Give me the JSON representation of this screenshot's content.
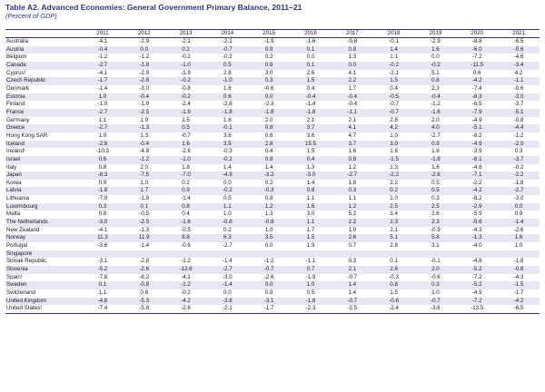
{
  "title": "Table A2. Advanced Economies: General Government Primary Balance, 2011–21",
  "subtitle": "(Percent of GDP)",
  "years": [
    "2011",
    "2012",
    "2013",
    "2014",
    "2015",
    "2016",
    "2017",
    "2018",
    "2019",
    "2020",
    "2021"
  ],
  "rows": [
    {
      "country": "Australia",
      "values": [
        "-4.1",
        "-2.9",
        "-2.1",
        "-2.1",
        "-1.9",
        "-1.6",
        "-0.8",
        "-0.1",
        "-2.9",
        "-8.8",
        "-6.5"
      ]
    },
    {
      "country": "Austria",
      "values": [
        "-0.4",
        "0.0",
        "0.2",
        "-0.7",
        "0.9",
        "0.1",
        "0.8",
        "1.4",
        "1.6",
        "-6.0",
        "-0.6"
      ]
    },
    {
      "country": "Belgium",
      "values": [
        "-1.2",
        "-1.2",
        "-0.2",
        "-0.2",
        "0.2",
        "0.0",
        "1.3",
        "1.1",
        "0.0",
        "-7.2",
        "-4.6"
      ]
    },
    {
      "country": "Canada",
      "values": [
        "-2.7",
        "-1.8",
        "-1.0",
        "0.5",
        "0.6",
        "0.1",
        "0.0",
        "-0.2",
        "-0.2",
        "-11.5",
        "-3.4"
      ]
    },
    {
      "country": "Cyprus¹",
      "values": [
        "-4.1",
        "-2.9",
        "-1.9",
        "2.8",
        "3.0",
        "2.6",
        "4.1",
        "-2.1",
        "5.1",
        "0.6",
        "4.2"
      ]
    },
    {
      "country": "Czech Republic",
      "values": [
        "-1.7",
        "-2.8",
        "-0.2",
        "-1.0",
        "0.3",
        "1.5",
        "2.2",
        "1.5",
        "0.8",
        "-4.2",
        "-1.1"
      ]
    },
    {
      "country": "Denmark",
      "values": [
        "-1.4",
        "-3.0",
        "-0.8",
        "1.6",
        "-0.6",
        "0.4",
        "1.7",
        "0.4",
        "2.3",
        "-7.4",
        "-0.6"
      ]
    },
    {
      "country": "Estonia",
      "values": [
        "1.0",
        "-0.4",
        "-0.2",
        "0.6",
        "0.0",
        "-0.4",
        "-0.4",
        "-0.5",
        "-0.4",
        "-8.3",
        "-3.0"
      ]
    },
    {
      "country": "Finland",
      "values": [
        "-1.0",
        "-1.9",
        "-2.4",
        "-2.8",
        "-2.3",
        "-1.4",
        "-0.4",
        "-0.7",
        "-1.2",
        "-6.5",
        "-3.7"
      ]
    },
    {
      "country": "France",
      "values": [
        "-2.7",
        "-2.5",
        "-1.9",
        "-1.8",
        "-1.8",
        "-1.8",
        "-1.1",
        "-0.7",
        "-1.6",
        "-7.9",
        "-5.1"
      ]
    },
    {
      "country": "Germany",
      "values": [
        "1.1",
        "1.9",
        "1.5",
        "1.8",
        "2.0",
        "2.1",
        "2.1",
        "2.6",
        "2.0",
        "-4.9",
        "-0.8"
      ]
    },
    {
      "country": "Greece",
      "values": [
        "-2.7",
        "-1.3",
        "0.5",
        "-0.1",
        "0.8",
        "3.7",
        "4.1",
        "4.2",
        "4.0",
        "-5.1",
        "-4.4"
      ]
    },
    {
      "country": "Hong Kong SAR",
      "values": [
        "1.9",
        "1.3",
        "-0.7",
        "3.6",
        "0.6",
        "3.6",
        "4.7",
        "1.0",
        "-2.7",
        "-8.2",
        "-1.2"
      ]
    },
    {
      "country": "Iceland",
      "values": [
        "-2.8",
        "-0.4",
        "1.6",
        "3.5",
        "2.8",
        "15.5",
        "3.7",
        "3.0",
        "0.9",
        "-4.9",
        "-2.0"
      ]
    },
    {
      "country": "Ireland¹",
      "values": [
        "-10.3",
        "-4.8",
        "-2.6",
        "-0.3",
        "0.4",
        "1.5",
        "1.6",
        "1.6",
        "1.6",
        "-3.9",
        "0.3"
      ]
    },
    {
      "country": "Israel",
      "values": [
        "0.6",
        "-1.2",
        "-1.0",
        "-0.2",
        "0.8",
        "0.4",
        "0.8",
        "-1.5",
        "-1.8",
        "-8.1",
        "-3.7"
      ]
    },
    {
      "country": "Italy",
      "values": [
        "0.8",
        "2.0",
        "1.8",
        "1.4",
        "1.4",
        "1.3",
        "1.2",
        "1.3",
        "1.6",
        "-4.8",
        "-0.2"
      ]
    },
    {
      "country": "Japan",
      "values": [
        "-8.3",
        "-7.5",
        "-7.0",
        "-4.9",
        "-3.2",
        "-3.0",
        "-2.7",
        "-2.2",
        "-2.6",
        "-7.1",
        "-2.2"
      ]
    },
    {
      "country": "Korea",
      "values": [
        "0.9",
        "1.0",
        "0.2",
        "0.0",
        "0.2",
        "1.4",
        "1.8",
        "2.2",
        "0.5",
        "-2.2",
        "-1.8"
      ]
    },
    {
      "country": "Latvia",
      "values": [
        "-1.8",
        "1.7",
        "0.9",
        "-0.2",
        "-0.3",
        "0.8",
        "0.3",
        "0.2",
        "0.5",
        "-4.2",
        "-2.7"
      ]
    },
    {
      "country": "Lithuania",
      "values": [
        "-7.9",
        "-1.8",
        "-1.4",
        "0.5",
        "0.8",
        "1.1",
        "1.1",
        "1.0",
        "0.3",
        "-8.2",
        "-3.0"
      ]
    },
    {
      "country": "Luxembourg",
      "values": [
        "0.3",
        "0.1",
        "0.8",
        "1.1",
        "1.2",
        "1.6",
        "1.2",
        "2.5",
        "2.5",
        "-2.9",
        "0.0"
      ]
    },
    {
      "country": "Malta",
      "values": [
        "0.8",
        "-0.5",
        "0.4",
        "1.0",
        "1.3",
        "3.0",
        "5.2",
        "3.4",
        "2.6",
        "-5.9",
        "0.9"
      ]
    },
    {
      "country": "The Netherlands",
      "values": [
        "-3.0",
        "-2.5",
        "-1.6",
        "-0.8",
        "-0.8",
        "1.1",
        "2.2",
        "2.3",
        "2.3",
        "-5.6",
        "-1.4"
      ]
    },
    {
      "country": "New Zealand",
      "values": [
        "-4.1",
        "-1.3",
        "-0.5",
        "0.2",
        "1.0",
        "1.7",
        "1.9",
        "2.1",
        "-0.9",
        "-4.3",
        "-2.6"
      ]
    },
    {
      "country": "Norway",
      "values": [
        "11.3",
        "11.9",
        "8.8",
        "6.3",
        "3.5",
        "1.5",
        "2.6",
        "5.1",
        "5.8",
        "-1.3",
        "1.6"
      ]
    },
    {
      "country": "Portugal",
      "values": [
        "-3.6",
        "-1.4",
        "-0.6",
        "-2.7",
        "0.0",
        "1.9",
        "0.7",
        "2.8",
        "3.1",
        "-4.0",
        "1.0"
      ]
    },
    {
      "country": "Singapore",
      "values": [
        "",
        "",
        "",
        "",
        "",
        "",
        "",
        "",
        "",
        "",
        ""
      ]
    },
    {
      "country": "Slovak Republic",
      "values": [
        "-3.1",
        "-2.8",
        "-1.2",
        "-1.4",
        "-1.2",
        "-1.1",
        "0.3",
        "0.1",
        "-0.1",
        "-4.8",
        "-1.8"
      ]
    },
    {
      "country": "Slovenia",
      "values": [
        "-5.2",
        "-2.6",
        "-12.6",
        "-2.7",
        "-0.7",
        "0.7",
        "2.1",
        "2.6",
        "2.0",
        "-5.2",
        "-0.8"
      ]
    },
    {
      "country": "Spain¹",
      "values": [
        "-7.8",
        "-8.2",
        "-4.1",
        "-3.0",
        "-2.6",
        "-1.9",
        "-0.7",
        "-0.3",
        "-0.6",
        "-7.2",
        "-4.3"
      ]
    },
    {
      "country": "Sweden",
      "values": [
        "0.1",
        "-0.8",
        "-1.2",
        "-1.4",
        "0.0",
        "1.0",
        "1.4",
        "0.8",
        "0.3",
        "-5.2",
        "-1.5"
      ]
    },
    {
      "country": "Switzerland",
      "values": [
        "1.1",
        "0.8",
        "-0.2",
        "0.0",
        "0.9",
        "0.5",
        "1.4",
        "1.5",
        "1.0",
        "-4.9",
        "-1.7"
      ]
    },
    {
      "country": "United Kingdom",
      "values": [
        "-4.8",
        "-5.3",
        "-4.2",
        "-3.8",
        "-3.1",
        "-1.8",
        "-0.7",
        "-0.6",
        "-0.7",
        "-7.2",
        "-4.2"
      ]
    },
    {
      "country": "United States²",
      "values": [
        "-7.4",
        "-5.8",
        "-2.6",
        "-2.1",
        "-1.7",
        "-2.3",
        "-2.5",
        "-2.4",
        "-3.6",
        "-13.5",
        "-6.5"
      ]
    }
  ]
}
